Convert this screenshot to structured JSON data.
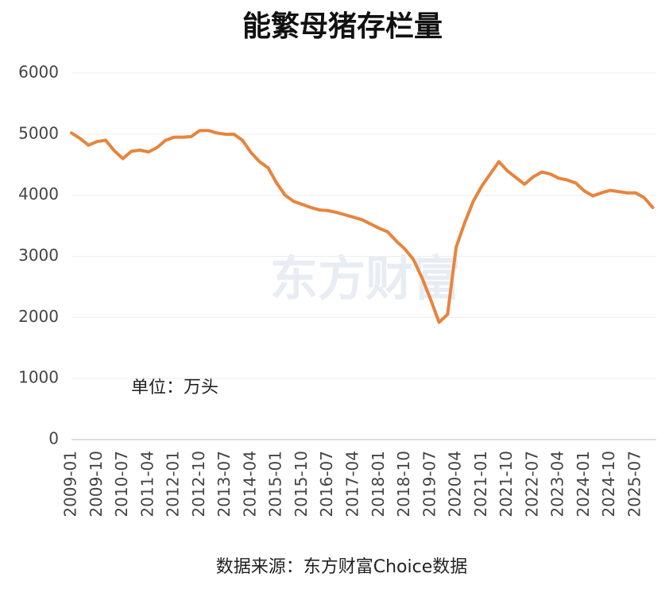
{
  "chart_data": {
    "type": "line",
    "title": "能繁母猪存栏量",
    "annotation": "单位：万头",
    "watermark": "东方财富",
    "source": "数据来源：东方财富Choice数据",
    "categories": [
      "2009-01",
      null,
      null,
      "2009-10",
      null,
      null,
      "2010-07",
      null,
      null,
      "2011-04",
      null,
      null,
      "2012-01",
      null,
      null,
      "2012-10",
      null,
      null,
      "2013-07",
      null,
      null,
      "2014-04",
      null,
      null,
      "2015-01",
      null,
      null,
      "2015-10",
      null,
      null,
      "2016-07",
      null,
      null,
      "2017-04",
      null,
      null,
      "2018-01",
      null,
      null,
      "2018-10",
      null,
      null,
      "2019-07",
      null,
      null,
      "2020-04",
      null,
      null,
      "2021-01",
      null,
      null,
      "2021-10",
      null,
      null,
      "2022-07",
      null,
      null,
      "2023-04",
      null,
      null,
      "2024-01",
      null,
      null,
      "2024-10",
      null,
      null,
      "2025-07",
      null,
      null
    ],
    "series": [
      {
        "color": "#e8843c",
        "values": [
          5020,
          4930,
          4820,
          4880,
          4900,
          4730,
          4600,
          4720,
          4740,
          4710,
          4780,
          4900,
          4950,
          4950,
          4960,
          5060,
          5060,
          5020,
          5000,
          5000,
          4900,
          4700,
          4550,
          4450,
          4200,
          4000,
          3900,
          3850,
          3800,
          3760,
          3750,
          3720,
          3680,
          3640,
          3600,
          3530,
          3460,
          3400,
          3250,
          3120,
          2950,
          2650,
          2300,
          1920,
          2050,
          3150,
          3550,
          3900,
          4150,
          4350,
          4550,
          4400,
          4290,
          4180,
          4300,
          4380,
          4350,
          4280,
          4250,
          4200,
          4070,
          3990,
          4040,
          4080,
          4060,
          4040,
          4040,
          3960,
          3800
        ]
      }
    ],
    "ylim": [
      0,
      6000
    ],
    "yticks": [
      0,
      1000,
      2000,
      3000,
      4000,
      5000,
      6000
    ],
    "grid": true
  }
}
